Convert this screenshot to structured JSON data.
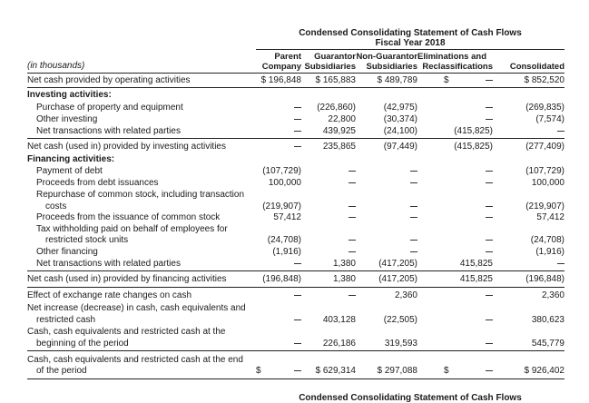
{
  "title": "Condensed Consolidating Statement of Cash Flows",
  "subtitle": "Fiscal Year 2018",
  "units": "(in thousands)",
  "columns": [
    {
      "line1": "Parent",
      "line2": "Company"
    },
    {
      "line1": "Guarantor",
      "line2": "Subsidiaries"
    },
    {
      "line1": "Non-Guarantor",
      "line2": "Subsidiaries"
    },
    {
      "line1": "Eliminations and",
      "line2": "Reclassifications"
    },
    {
      "line1": "",
      "line2": "Consolidated"
    }
  ],
  "rows": [
    {
      "label": "Net cash provided by operating activities",
      "v": [
        "$ 196,848",
        "$ 165,883",
        "$ 489,789",
        "$",
        "$ 852,520"
      ]
    },
    {
      "label": "Investing activities:",
      "v": []
    },
    {
      "label": "Purchase of property and equipment",
      "v": [
        "—",
        "(226,860)",
        "(42,975)",
        "—",
        "(269,835)"
      ]
    },
    {
      "label": "Other investing",
      "v": [
        "—",
        "22,800",
        "(30,374)",
        "—",
        "(7,574)"
      ]
    },
    {
      "label": "Net transactions with related parties",
      "v": [
        "—",
        "439,925",
        "(24,100)",
        "(415,825)",
        "—"
      ]
    },
    {
      "label": "Net cash (used in) provided by investing activities",
      "v": [
        "—",
        "235,865",
        "(97,449)",
        "(415,825)",
        "(277,409)"
      ]
    },
    {
      "label": "Financing activities:",
      "v": []
    },
    {
      "label": "Payment of debt",
      "v": [
        "(107,729)",
        "—",
        "—",
        "—",
        "(107,729)"
      ]
    },
    {
      "label": "Proceeds from debt issuances",
      "v": [
        "100,000",
        "—",
        "—",
        "—",
        "100,000"
      ]
    },
    {
      "label": "Repurchase of common stock, including transaction",
      "label2": "costs",
      "v": [
        "(219,907)",
        "—",
        "—",
        "—",
        "(219,907)"
      ]
    },
    {
      "label": "Proceeds from the issuance of common stock",
      "v": [
        "57,412",
        "—",
        "—",
        "—",
        "57,412"
      ]
    },
    {
      "label": "Tax withholding paid on behalf of employees for",
      "label2": "restricted stock units",
      "v": [
        "(24,708)",
        "—",
        "—",
        "—",
        "(24,708)"
      ]
    },
    {
      "label": "Other financing",
      "v": [
        "(1,916)",
        "—",
        "—",
        "—",
        "(1,916)"
      ]
    },
    {
      "label": "Net transactions with related parties",
      "v": [
        "—",
        "1,380",
        "(417,205)",
        "415,825",
        "—"
      ]
    },
    {
      "label": "Net cash (used in) provided by financing activities",
      "v": [
        "(196,848)",
        "1,380",
        "(417,205)",
        "415,825",
        "(196,848)"
      ]
    },
    {
      "label": "Effect of exchange rate changes on cash",
      "v": [
        "—",
        "—",
        "2,360",
        "—",
        "2,360"
      ]
    },
    {
      "label": "Net increase (decrease) in cash, cash equivalents and",
      "label2": "restricted cash",
      "v": [
        "—",
        "403,128",
        "(22,505)",
        "—",
        "380,623"
      ]
    },
    {
      "label": "Cash, cash equivalents and restricted cash at the",
      "label2": "beginning of the period",
      "v": [
        "—",
        "226,186",
        "319,593",
        "—",
        "545,779"
      ]
    },
    {
      "label": "Cash, cash equivalents and restricted cash at the end",
      "label2": "of the period",
      "v": [
        "$",
        "$ 629,314",
        "$ 297,088",
        "$",
        "$ 926,402"
      ]
    }
  ],
  "footer_title": "Condensed Consolidating Statement of Cash Flows"
}
